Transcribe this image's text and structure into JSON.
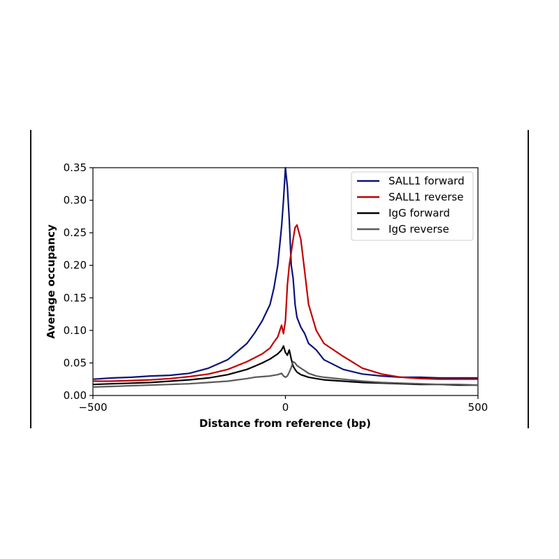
{
  "chart_data": {
    "type": "line",
    "title": "",
    "xlabel": "Distance from reference (bp)",
    "ylabel": "Average occupancy",
    "xlim": [
      -500,
      500
    ],
    "ylim": [
      0,
      0.35
    ],
    "xticks": [
      -500,
      0,
      500
    ],
    "xtick_labels": [
      "−500",
      "0",
      "500"
    ],
    "yticks": [
      0.0,
      0.05,
      0.1,
      0.15,
      0.2,
      0.25,
      0.3,
      0.35
    ],
    "ytick_labels": [
      "0.00",
      "0.05",
      "0.10",
      "0.15",
      "0.20",
      "0.25",
      "0.30",
      "0.35"
    ],
    "grid": false,
    "legend_position": "top-right",
    "x": [
      -500,
      -450,
      -400,
      -350,
      -300,
      -250,
      -200,
      -150,
      -100,
      -80,
      -60,
      -40,
      -30,
      -20,
      -10,
      -5,
      0,
      5,
      10,
      15,
      20,
      25,
      30,
      40,
      50,
      60,
      80,
      100,
      150,
      200,
      250,
      300,
      350,
      400,
      450,
      500
    ],
    "series": [
      {
        "name": "SALL1 forward",
        "color": "#0b1378",
        "values": [
          0.025,
          0.027,
          0.028,
          0.03,
          0.031,
          0.034,
          0.042,
          0.055,
          0.08,
          0.096,
          0.115,
          0.14,
          0.165,
          0.2,
          0.26,
          0.3,
          0.35,
          0.32,
          0.27,
          0.2,
          0.18,
          0.14,
          0.12,
          0.105,
          0.095,
          0.08,
          0.07,
          0.055,
          0.04,
          0.033,
          0.03,
          0.028,
          0.028,
          0.027,
          0.027,
          0.027
        ]
      },
      {
        "name": "SALL1 reverse",
        "color": "#c00000",
        "values": [
          0.022,
          0.022,
          0.023,
          0.024,
          0.026,
          0.029,
          0.033,
          0.04,
          0.052,
          0.058,
          0.064,
          0.073,
          0.082,
          0.09,
          0.108,
          0.095,
          0.115,
          0.17,
          0.2,
          0.22,
          0.24,
          0.258,
          0.262,
          0.24,
          0.19,
          0.14,
          0.1,
          0.08,
          0.06,
          0.042,
          0.033,
          0.028,
          0.026,
          0.025,
          0.025,
          0.025
        ]
      },
      {
        "name": "IgG forward",
        "color": "#000000",
        "values": [
          0.017,
          0.018,
          0.019,
          0.02,
          0.022,
          0.024,
          0.027,
          0.032,
          0.04,
          0.045,
          0.05,
          0.056,
          0.06,
          0.064,
          0.07,
          0.076,
          0.066,
          0.062,
          0.07,
          0.056,
          0.045,
          0.04,
          0.036,
          0.032,
          0.03,
          0.028,
          0.026,
          0.024,
          0.022,
          0.02,
          0.019,
          0.018,
          0.017,
          0.017,
          0.016,
          0.016
        ]
      },
      {
        "name": "IgG reverse",
        "color": "#5a5a5a",
        "values": [
          0.013,
          0.014,
          0.015,
          0.016,
          0.017,
          0.018,
          0.02,
          0.022,
          0.026,
          0.028,
          0.029,
          0.03,
          0.031,
          0.032,
          0.034,
          0.03,
          0.028,
          0.03,
          0.036,
          0.043,
          0.052,
          0.05,
          0.046,
          0.042,
          0.038,
          0.034,
          0.03,
          0.028,
          0.025,
          0.022,
          0.02,
          0.019,
          0.018,
          0.017,
          0.017,
          0.016
        ]
      }
    ]
  }
}
